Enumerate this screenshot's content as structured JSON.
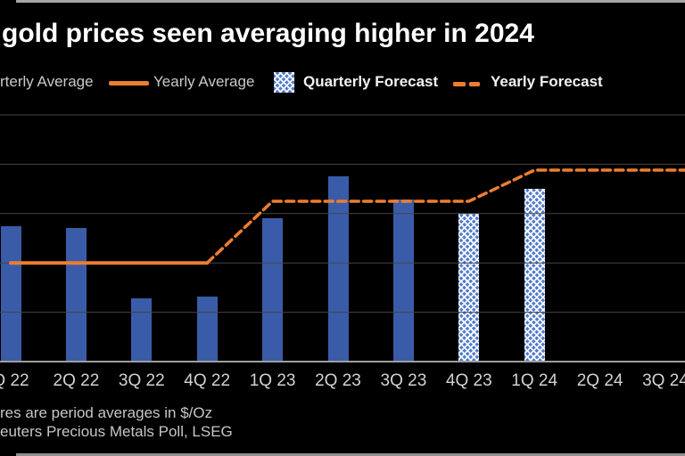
{
  "header": {
    "title": "gold prices seen averaging higher in 2024"
  },
  "legend": [
    {
      "label": "rterly Average",
      "swatch": "none"
    },
    {
      "label": "Yearly Average",
      "swatch": "orange-solid-line"
    },
    {
      "label": "Quarterly Forecast",
      "swatch": "blue-crosshatch-square"
    },
    {
      "label": "Yearly Forecast",
      "swatch": "orange-dashes"
    }
  ],
  "footnotes": {
    "line1": "res are period averages in $/Oz",
    "line2": "euters Precious Metals Poll, LSEG"
  },
  "colors": {
    "background": "#000000",
    "title_text": "#ffffff",
    "bar_actual_blue": "#3A5CA8",
    "bar_forecast_pattern_blue": "#4F7AC9",
    "line_orange": "#ED7D31",
    "gridline": "#464646",
    "axis_line": "#9e9e9e",
    "axis_label_text": "#d2d2d2",
    "footnote_text": "#c6c6c6"
  },
  "chart_data": {
    "type": "bar",
    "title": "gold prices seen averaging higher in 2024",
    "unit": "$/Oz",
    "ylabel": "",
    "xlabel": "",
    "ylim": [
      1600,
      2100
    ],
    "gridline_step": 100,
    "grid": true,
    "yaxis_tick_labels_visible": false,
    "legend_position": "top",
    "categories": [
      "Q 22",
      "2Q 22",
      "3Q 22",
      "4Q 22",
      "1Q 23",
      "2Q 23",
      "3Q 23",
      "4Q 23",
      "1Q 24",
      "2Q 24",
      "3Q 24"
    ],
    "bars": {
      "actual_name": "Quarterly Average",
      "forecast_name": "Quarterly Forecast",
      "values": [
        1874,
        1871,
        1729,
        1731,
        1890,
        1976,
        1928,
        1900,
        1950,
        null,
        null
      ],
      "kinds": [
        "actual",
        "actual",
        "actual",
        "actual",
        "actual",
        "actual",
        "actual",
        "forecast",
        "forecast",
        null,
        null
      ]
    },
    "yearly_line": {
      "solid": {
        "name": "Yearly Average",
        "value": 1800,
        "points": [
          {
            "i": 0,
            "v": 1800
          },
          {
            "i": 3,
            "v": 1800
          }
        ]
      },
      "dashed": {
        "name": "Yearly Forecast",
        "values": {
          "2023": 1925,
          "2024": 1988
        },
        "points": [
          {
            "i": 3,
            "v": 1800
          },
          {
            "i": 4,
            "v": 1925
          },
          {
            "i": 7,
            "v": 1925
          },
          {
            "i": 8,
            "v": 1988
          },
          {
            "x": 772,
            "v": 1988
          }
        ]
      }
    }
  }
}
